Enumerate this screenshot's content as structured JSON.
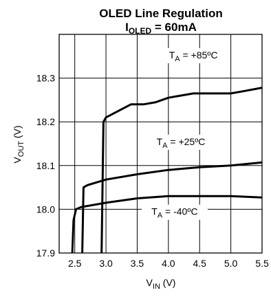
{
  "chart_data": {
    "type": "line",
    "title": "OLED Line Regulation",
    "subtitle": {
      "main": "I",
      "sub": "OLED",
      "rest": " = 60mA"
    },
    "xlabel": {
      "main": "V",
      "sub": "IN",
      "rest": " (V)"
    },
    "ylabel": {
      "main": "V",
      "sub": "OUT",
      "rest": " (V)"
    },
    "xlim": [
      2.25,
      5.5
    ],
    "ylim": [
      17.9,
      18.4
    ],
    "xticks": [
      2.5,
      3.0,
      3.5,
      4.0,
      4.5,
      5.0,
      5.5
    ],
    "xtick_labels": [
      "2.5",
      "3.0",
      "3.5",
      "4.0",
      "4.5",
      "5.0",
      "5.5"
    ],
    "yticks": [
      17.9,
      18.0,
      18.1,
      18.2,
      18.3
    ],
    "ytick_labels": [
      "17.9",
      "18.0",
      "18.1",
      "18.2",
      "18.3"
    ],
    "grid": true,
    "series": [
      {
        "name": {
          "main": "T",
          "sub": "A",
          "rest": " = +85ºC"
        },
        "label_at": [
          4.4,
          18.345
        ],
        "points": [
          [
            2.93,
            17.9
          ],
          [
            2.96,
            18.2
          ],
          [
            3.0,
            18.21
          ],
          [
            3.2,
            18.225
          ],
          [
            3.4,
            18.24
          ],
          [
            3.6,
            18.24
          ],
          [
            3.8,
            18.245
          ],
          [
            4.0,
            18.255
          ],
          [
            4.2,
            18.26
          ],
          [
            4.4,
            18.265
          ],
          [
            4.6,
            18.265
          ],
          [
            4.8,
            18.265
          ],
          [
            5.0,
            18.265
          ],
          [
            5.2,
            18.27
          ],
          [
            5.5,
            18.278
          ]
        ]
      },
      {
        "name": {
          "main": "T",
          "sub": "A",
          "rest": " = +25ºC"
        },
        "label_at": [
          4.2,
          18.147
        ],
        "points": [
          [
            2.62,
            17.9
          ],
          [
            2.64,
            18.05
          ],
          [
            2.7,
            18.055
          ],
          [
            3.0,
            18.068
          ],
          [
            3.5,
            18.08
          ],
          [
            4.0,
            18.09
          ],
          [
            4.5,
            18.096
          ],
          [
            5.0,
            18.1
          ],
          [
            5.5,
            18.107
          ]
        ]
      },
      {
        "name": {
          "main": "T",
          "sub": "A",
          "rest": " = -40ºC"
        },
        "label_at": [
          4.1,
          17.987
        ],
        "points": [
          [
            2.46,
            17.9
          ],
          [
            2.48,
            17.975
          ],
          [
            2.52,
            18.0
          ],
          [
            2.6,
            18.005
          ],
          [
            3.0,
            18.015
          ],
          [
            3.5,
            18.025
          ],
          [
            4.0,
            18.03
          ],
          [
            4.5,
            18.03
          ],
          [
            5.0,
            18.03
          ],
          [
            5.5,
            18.027
          ]
        ]
      }
    ]
  }
}
